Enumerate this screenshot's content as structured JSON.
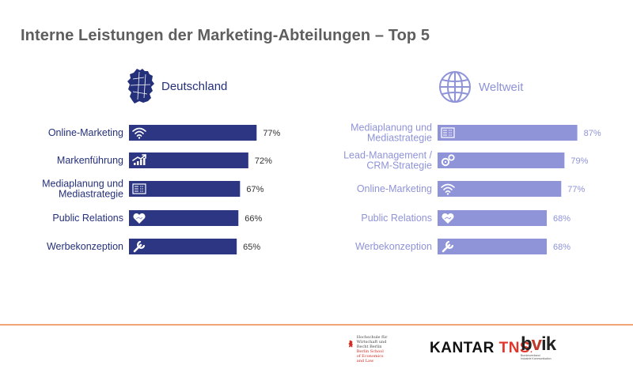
{
  "page": {
    "title": "Interne Leistungen der Marketing-Abteilungen – Top 5"
  },
  "colors": {
    "germany_bar": "#2c3682",
    "worldwide_bar": "#8f93d8",
    "title": "#5e5e5e",
    "divider": "#f3a476"
  },
  "chart_data": [
    {
      "type": "bar",
      "orientation": "horizontal",
      "title": "Deutschland",
      "icon": "germany-map-icon",
      "categories": [
        [
          "Online-Marketing"
        ],
        [
          "Markenführung"
        ],
        [
          "Mediaplanung und",
          "Mediastrategie"
        ],
        [
          "Public Relations"
        ],
        [
          "Werbekonzeption"
        ]
      ],
      "values": [
        77,
        72,
        67,
        66,
        65
      ],
      "value_labels": [
        "77%",
        "72%",
        "67%",
        "66%",
        "65%"
      ],
      "bar_icons": [
        "wifi-icon",
        "growth-chart-icon",
        "media-plan-icon",
        "heart-handshake-icon",
        "wrench-icon"
      ],
      "xlim": [
        0,
        100
      ]
    },
    {
      "type": "bar",
      "orientation": "horizontal",
      "title": "Weltweit",
      "icon": "globe-icon",
      "categories": [
        [
          "Mediaplanung und",
          "Mediastrategie"
        ],
        [
          "Lead-Management /",
          "CRM-Strategie"
        ],
        [
          "Online-Marketing"
        ],
        [
          "Public Relations"
        ],
        [
          "Werbekonzeption"
        ]
      ],
      "values": [
        87,
        79,
        77,
        68,
        68
      ],
      "value_labels": [
        "87%",
        "79%",
        "77%",
        "68%",
        "68%"
      ],
      "bar_icons": [
        "media-plan-icon",
        "gears-icon",
        "wifi-icon",
        "heart-handshake-icon",
        "wrench-icon"
      ],
      "xlim": [
        0,
        100
      ]
    }
  ],
  "footer": {
    "hwr_lines": [
      "Hochschule für",
      "Wirtschaft und Recht Berlin"
    ],
    "hwr_sub": "Berlin School of Economics and Law",
    "kantar_a": "KANTAR",
    "kantar_b": "TNS",
    "bvik_b": "b",
    "bvik_v": "v",
    "bvik_ik": "ik",
    "bvik_sub": [
      "Bundesverband",
      "Industrie Kommunikation"
    ]
  }
}
